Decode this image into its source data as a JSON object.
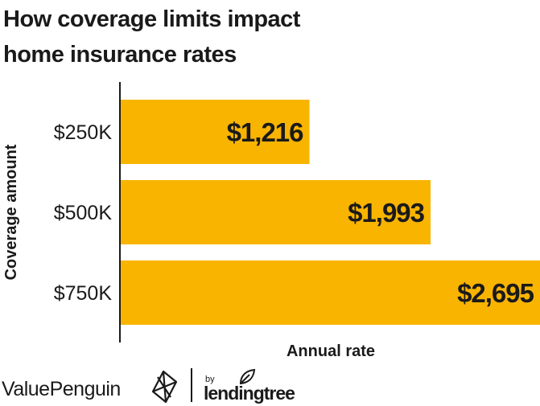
{
  "title_lines": [
    "How coverage limits impact",
    "home insurance rates"
  ],
  "chart_data": {
    "type": "bar",
    "orientation": "horizontal",
    "title": "How coverage limits impact home insurance rates",
    "categories": [
      "$250K",
      "$500K",
      "$750K"
    ],
    "values": [
      1216,
      1993,
      2695
    ],
    "value_labels": [
      "$1,216",
      "$1,993",
      "$2,695"
    ],
    "xlabel": "Annual rate",
    "ylabel": "Coverage amount",
    "xlim": [
      0,
      2695
    ],
    "grid": false,
    "legend": "none"
  },
  "colors": {
    "bar": "#F9B400",
    "text": "#1a1a1a"
  },
  "footer": {
    "brand": "ValuePenguin",
    "by": "by",
    "partner": "lendingtree",
    "brand_icon": "valuepenguin-logo-icon",
    "partner_icon": "lendingtree-leaf-icon"
  }
}
